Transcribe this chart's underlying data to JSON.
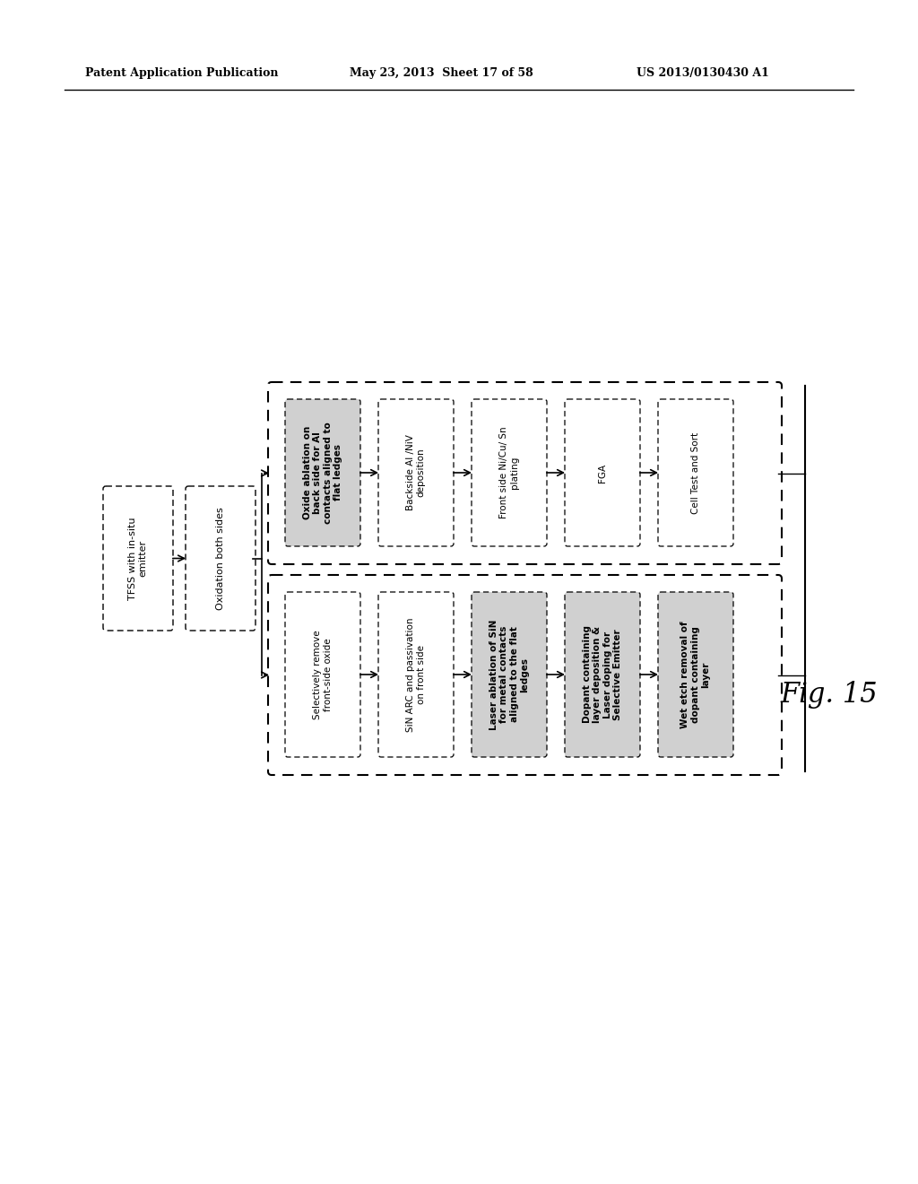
{
  "header_left": "Patent Application Publication",
  "header_mid": "May 23, 2013  Sheet 17 of 58",
  "header_right": "US 2013/0130430 A1",
  "fig_label": "Fig. 15",
  "background_color": "#ffffff",
  "boxes_top": [
    {
      "label": "Oxide ablation on\nback side for Al\ncontacts aligned to\nflat ledges",
      "shaded": true,
      "bold": true
    },
    {
      "label": "Backside Al /NiV\ndeposition",
      "shaded": false,
      "bold": false
    },
    {
      "label": "Front side Ni/Cu/ Sn\nplating",
      "shaded": false,
      "bold": false
    },
    {
      "label": "FGA",
      "shaded": false,
      "bold": false
    },
    {
      "label": "Cell Test and Sort",
      "shaded": false,
      "bold": false
    }
  ],
  "boxes_bottom": [
    {
      "label": "Selectively remove\nfront-side oxide",
      "shaded": false,
      "bold": false
    },
    {
      "label": "SiN ARC and passivation\non front side",
      "shaded": false,
      "bold": false
    },
    {
      "label": "Laser ablation of SiN\nfor metal contacts\naligned to the flat\nledges",
      "shaded": true,
      "bold": true
    },
    {
      "label": "Dopant containing\nlayer deposition &\nLaser doping for\nSelective Emitter",
      "shaded": true,
      "bold": true
    },
    {
      "label": "Wet etch removal of\ndopant containing\nlayer",
      "shaded": true,
      "bold": true
    }
  ],
  "left_boxes": [
    {
      "label": "TFSS with in-situ\nemitter"
    },
    {
      "label": "Oxidation both sides"
    }
  ]
}
